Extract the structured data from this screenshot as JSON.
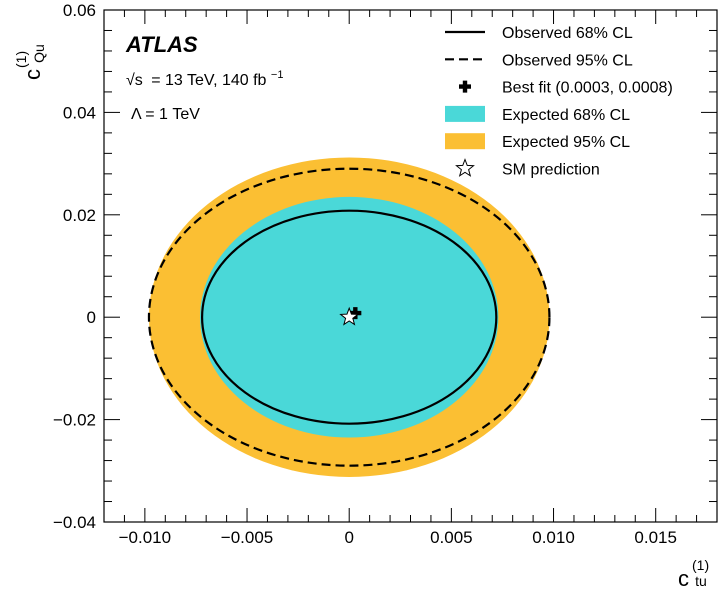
{
  "chart_data": {
    "type": "contour",
    "experiment": "ATLAS",
    "energy_label": "= 13 TeV, 140 fb",
    "sqrt_symbol": "√s",
    "lumi_exp": "−1",
    "lambda_label": "Λ = 1 TeV",
    "xlabel": {
      "base": "c",
      "sup": "(1)",
      "sub": "tu"
    },
    "ylabel": {
      "base": "c",
      "sup": "(1)",
      "sub": "Qu"
    },
    "xlim": [
      -0.012,
      0.018
    ],
    "ylim": [
      -0.04,
      0.06
    ],
    "xticks": [
      -0.01,
      -0.005,
      0,
      0.005,
      0.01,
      0.015
    ],
    "xtick_labels": [
      "−0.010",
      "−0.005",
      "0",
      "0.005",
      "0.010",
      "0.015"
    ],
    "yticks": [
      -0.04,
      -0.02,
      0,
      0.02,
      0.04,
      0.06
    ],
    "ytick_labels": [
      "−0.04",
      "−0.02",
      "0",
      "0.02",
      "0.04",
      "0.06"
    ],
    "contours": {
      "expected_95": {
        "center": [
          0,
          0
        ],
        "half_width_x": 0.0098,
        "half_height_y": 0.0312,
        "color": "#fbbf33"
      },
      "expected_68": {
        "center": [
          0,
          0
        ],
        "half_width_x": 0.0073,
        "half_height_y": 0.0235,
        "color": "#4ad8d8"
      },
      "observed_95": {
        "center": [
          0,
          0
        ],
        "half_width_x": 0.0098,
        "half_height_y": 0.029,
        "style": "dashed"
      },
      "observed_68": {
        "center": [
          0,
          0
        ],
        "half_width_x": 0.0072,
        "half_height_y": 0.0208,
        "style": "solid"
      }
    },
    "best_fit": {
      "x": 0.0003,
      "y": 0.0008
    },
    "sm_prediction": {
      "x": 0,
      "y": 0
    },
    "legend": {
      "position": "top-right",
      "entries": [
        {
          "key": "observed_68",
          "label": "Observed 68% CL"
        },
        {
          "key": "observed_95",
          "label": "Observed 95% CL"
        },
        {
          "key": "best_fit",
          "label": "Best fit (0.0003, 0.0008)"
        },
        {
          "key": "expected_68",
          "label": "Expected 68% CL"
        },
        {
          "key": "expected_95",
          "label": "Expected 95% CL"
        },
        {
          "key": "sm_prediction",
          "label": "SM prediction"
        }
      ]
    }
  }
}
